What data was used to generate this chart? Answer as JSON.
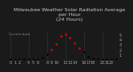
{
  "title": "Milwaukee Weather Solar Radiation Average\nper Hour\n(24 Hours)",
  "hours": [
    0,
    1,
    2,
    3,
    4,
    5,
    6,
    7,
    8,
    9,
    10,
    11,
    12,
    13,
    14,
    15,
    16,
    17,
    18,
    19,
    20,
    21,
    22,
    23
  ],
  "values": [
    0,
    0,
    0,
    0,
    0,
    0.02,
    0.08,
    0.35,
    1.0,
    1.9,
    3.1,
    4.6,
    4.9,
    4.3,
    3.2,
    2.3,
    1.4,
    0.55,
    0.15,
    0.03,
    0,
    0,
    0,
    0
  ],
  "dot_colors": [
    "black",
    "black",
    "black",
    "black",
    "black",
    "black",
    "black",
    "black",
    "black",
    "red",
    "red",
    "red",
    "red",
    "red",
    "red",
    "red",
    "black",
    "black",
    "black",
    "black",
    "black",
    "black",
    "black",
    "black"
  ],
  "ylim": [
    0,
    5.5
  ],
  "xlim": [
    -0.5,
    23.5
  ],
  "grid_positions": [
    0,
    4,
    8,
    12,
    16,
    20
  ],
  "plot_bg_color": "#1a1a1a",
  "fig_bg_color": "#1a1a1a",
  "title_color": "#cccccc",
  "subtitle": "Current data",
  "title_fontsize": 4.5,
  "tick_fontsize": 3.5,
  "marker_size": 1.8,
  "grid_color": "#555555",
  "yticks": [
    1,
    2,
    3,
    4,
    5
  ],
  "ytick_labels": [
    "1",
    "2",
    "3",
    "4",
    "5"
  ],
  "xtick_positions": [
    0,
    1,
    2,
    4,
    5,
    6,
    8,
    9,
    10,
    12,
    13,
    14,
    16,
    17,
    18,
    20,
    21,
    22
  ],
  "xtick_labels": [
    "0",
    "1",
    "2",
    "4",
    "5",
    "6",
    "8",
    "9",
    "10",
    "12",
    "13",
    "14",
    "16",
    "17",
    "18",
    "20",
    "21",
    "22"
  ]
}
